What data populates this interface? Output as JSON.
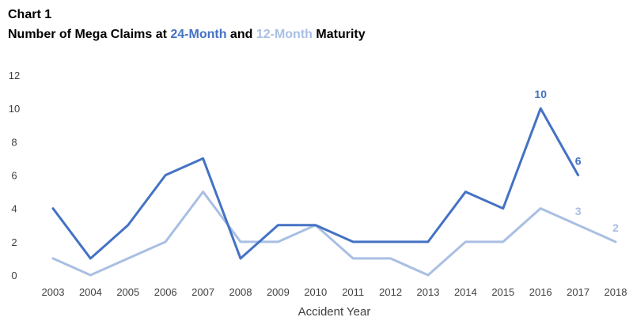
{
  "heading": {
    "label": "Chart 1",
    "title_prefix": "Number of Mega Claims at ",
    "title_kw1": "24-Month",
    "title_mid": " and ",
    "title_kw2": "12-Month",
    "title_suffix": " Maturity"
  },
  "chart_data": {
    "type": "line",
    "title": "Number of Mega Claims at 24-Month and 12-Month Maturity",
    "xlabel": "Accident Year",
    "ylabel": "",
    "x": [
      "2003",
      "2004",
      "2005",
      "2006",
      "2007",
      "2008",
      "2009",
      "2010",
      "2011",
      "2012",
      "2013",
      "2014",
      "2015",
      "2016",
      "2017",
      "2018"
    ],
    "yticks": [
      0,
      2,
      4,
      6,
      8,
      10,
      12
    ],
    "ylim": [
      0,
      12
    ],
    "grid": false,
    "legend": "none",
    "series": [
      {
        "name": "24-Month",
        "color": "#4472c4",
        "values": [
          4,
          1,
          3,
          6,
          7,
          1,
          3,
          3,
          2,
          2,
          2,
          5,
          4,
          10,
          6,
          null
        ],
        "data_labels": [
          {
            "index": 13,
            "text": "10"
          },
          {
            "index": 14,
            "text": "6"
          }
        ]
      },
      {
        "name": "12-Month",
        "color": "#a9bfe3",
        "values": [
          1,
          0,
          1,
          2,
          5,
          2,
          2,
          3,
          1,
          1,
          0,
          2,
          2,
          4,
          3,
          2
        ],
        "data_labels": [
          {
            "index": 14,
            "text": "3"
          },
          {
            "index": 15,
            "text": "2"
          }
        ]
      }
    ]
  }
}
